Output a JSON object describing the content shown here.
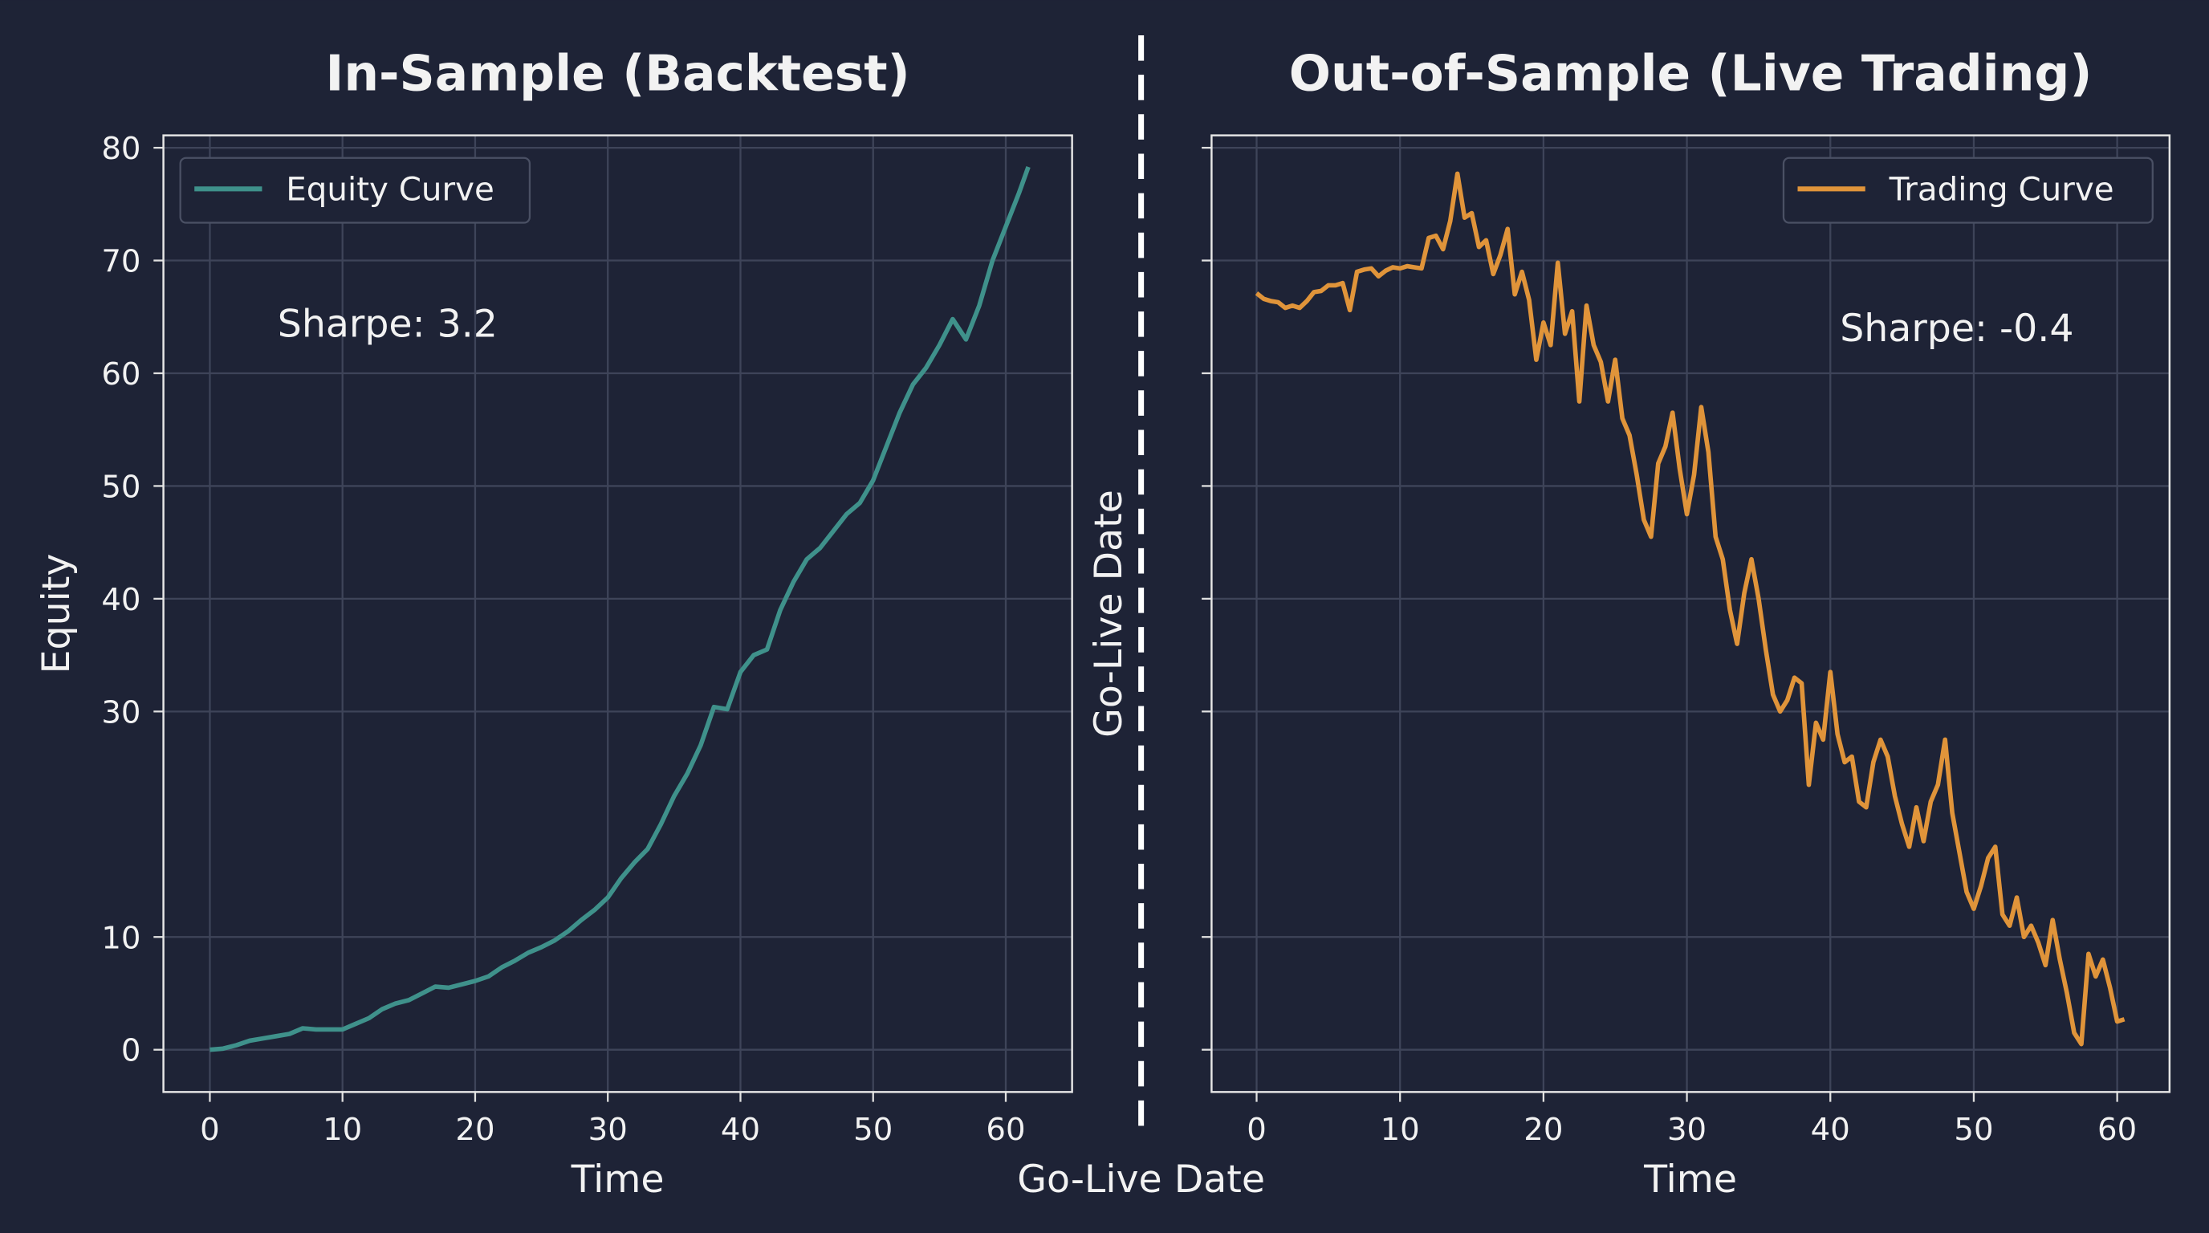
{
  "divider_label": "Go-Live Date",
  "chart_data": [
    {
      "type": "line",
      "title": "In-Sample (Backtest)",
      "xlabel": "Time",
      "ylabel": "Equity",
      "annotation": "Sharpe: 3.2",
      "legend": "upper left",
      "grid": true,
      "xlim": [
        -3.5,
        65
      ],
      "ylim": [
        -3.75,
        81.1
      ],
      "xticks": [
        0,
        10,
        20,
        30,
        40,
        50,
        60
      ],
      "yticks": [
        0,
        10,
        30,
        40,
        50,
        60,
        70,
        80
      ],
      "ytick_labels": true,
      "x": [
        0,
        1,
        2,
        3,
        4,
        5,
        6,
        7,
        8,
        9,
        10,
        11,
        12,
        13,
        14,
        15,
        16,
        17,
        18,
        19,
        20,
        21,
        22,
        23,
        24,
        25,
        26,
        27,
        28,
        29,
        30,
        31,
        32,
        33,
        34,
        35,
        36,
        37,
        38,
        39,
        40,
        41,
        42,
        43,
        44,
        45,
        46,
        47,
        48,
        49,
        50,
        51,
        52,
        53,
        54,
        55,
        56,
        57,
        58,
        59,
        60,
        61,
        61.7
      ],
      "series": [
        {
          "name": "Equity Curve",
          "color": "#3f918b",
          "values": [
            0,
            0.1,
            0.4,
            0.8,
            1.0,
            1.2,
            1.4,
            1.9,
            1.8,
            1.8,
            1.8,
            2.3,
            2.8,
            3.6,
            4.1,
            4.4,
            5.0,
            5.6,
            5.5,
            5.8,
            6.1,
            6.5,
            7.3,
            7.9,
            8.6,
            9.1,
            9.7,
            10.5,
            11.5,
            12.4,
            13.5,
            15.2,
            16.6,
            17.8,
            20.0,
            22.5,
            24.5,
            27.0,
            30.4,
            30.2,
            33.5,
            35.0,
            35.5,
            39.0,
            41.5,
            43.5,
            44.5,
            46.0,
            47.5,
            48.5,
            50.5,
            53.5,
            56.5,
            59.0,
            60.5,
            62.5,
            64.8,
            63.0,
            66.0,
            70.0,
            73.0,
            76.0,
            78.3
          ]
        }
      ]
    },
    {
      "type": "line",
      "title": "Out-of-Sample (Live Trading)",
      "xlabel": "Time",
      "ylabel": "Go-Live Date",
      "annotation": "Sharpe: -0.4",
      "legend": "upper right",
      "grid": true,
      "xlim": [
        -3.14,
        63.65
      ],
      "ylim": [
        -3.75,
        81.1
      ],
      "xticks": [
        0,
        10,
        20,
        30,
        40,
        50,
        60
      ],
      "yticks": [
        0,
        10,
        30,
        40,
        50,
        60,
        70,
        80
      ],
      "ytick_labels": false,
      "x": [
        0,
        0.5,
        1,
        1.5,
        2,
        2.5,
        3,
        3.5,
        4,
        4.5,
        5,
        5.5,
        6,
        6.5,
        7,
        7.5,
        8,
        8.5,
        9,
        9.5,
        10,
        10.5,
        11,
        11.5,
        12,
        12.5,
        13,
        13.5,
        14,
        14.5,
        15,
        15.5,
        16,
        16.5,
        17,
        17.5,
        18,
        18.5,
        19,
        19.5,
        20,
        20.5,
        21,
        21.5,
        22,
        22.5,
        23,
        23.5,
        24,
        24.5,
        25,
        25.5,
        26,
        26.5,
        27,
        27.5,
        28,
        28.5,
        29,
        29.5,
        30,
        30.5,
        31,
        31.5,
        32,
        32.5,
        33,
        33.5,
        34,
        34.5,
        35,
        35.5,
        36,
        36.5,
        37,
        37.5,
        38,
        38.5,
        39,
        39.5,
        40,
        40.5,
        41,
        41.5,
        42,
        42.5,
        43,
        43.5,
        44,
        44.5,
        45,
        45.5,
        46,
        46.5,
        47,
        47.5,
        48,
        48.5,
        49,
        49.5,
        50,
        50.5,
        51,
        51.5,
        52,
        52.5,
        53,
        53.5,
        54,
        54.5,
        55,
        55.5,
        56,
        56.5,
        57,
        57.5,
        58,
        58.5,
        59,
        59.5,
        60,
        60.5
      ],
      "series": [
        {
          "name": "Trading Curve",
          "color": "#e0943a",
          "values": [
            67.1,
            66.6,
            66.4,
            66.3,
            65.8,
            66.0,
            65.8,
            66.4,
            67.2,
            67.3,
            67.8,
            67.8,
            68,
            65.6,
            69,
            69.2,
            69.3,
            68.6,
            69.1,
            69.4,
            69.3,
            69.5,
            69.4,
            69.3,
            72,
            72.2,
            71.0,
            73.5,
            77.7,
            73.8,
            74.2,
            71.2,
            71.8,
            68.8,
            70.5,
            72.8,
            67,
            69,
            66.5,
            61.2,
            64.5,
            62.5,
            69.8,
            63.5,
            65.5,
            57.5,
            66,
            62.5,
            61,
            57.5,
            61.2,
            56,
            54.5,
            51,
            47,
            45.5,
            52,
            53.5,
            56.5,
            51.5,
            47.5,
            51,
            57,
            53,
            45.5,
            43.5,
            39,
            36,
            40.5,
            43.5,
            40,
            35.5,
            31.5,
            30,
            31,
            33,
            32.5,
            23.5,
            29,
            27.5,
            33.5,
            28,
            25.5,
            26,
            22,
            21.5,
            25.5,
            27.5,
            26,
            22.5,
            20,
            18,
            21.5,
            18.5,
            22,
            23.5,
            27.5,
            21,
            17.5,
            14,
            12.5,
            14.5,
            17,
            18,
            12,
            11,
            13.5,
            10,
            11,
            9.5,
            7.5,
            11.5,
            8,
            5,
            1.5,
            0.5,
            8.5,
            6.5,
            8,
            5.5,
            2.5,
            2.7
          ]
        }
      ]
    }
  ]
}
